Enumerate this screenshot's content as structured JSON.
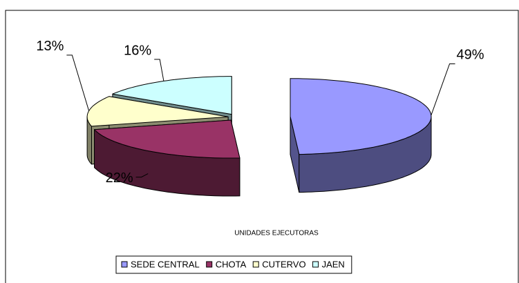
{
  "chart_data": {
    "type": "pie",
    "categories": [
      "SEDE CENTRAL",
      "CHOTA",
      "CUTERVO",
      "JAEN"
    ],
    "values": [
      49,
      22,
      13,
      16
    ],
    "value_labels": [
      "49%",
      "22%",
      "13%",
      "16%"
    ],
    "colors": [
      "#9999ff",
      "#993366",
      "#ffffcc",
      "#ccffff"
    ],
    "xlabel": "UNIDADES EJECUTORAS",
    "legend": "bottom"
  }
}
